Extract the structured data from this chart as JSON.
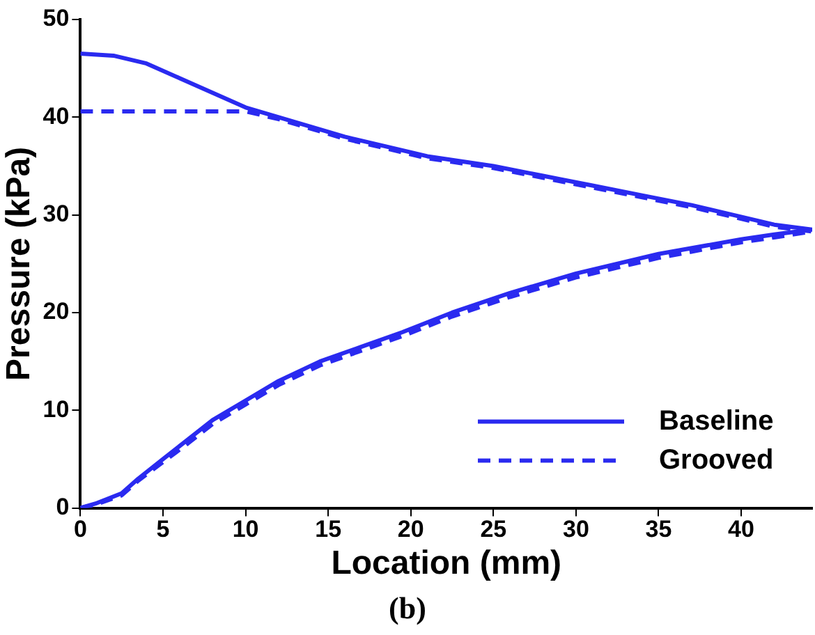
{
  "chart_data": {
    "type": "line",
    "xlabel": "Location (mm)",
    "ylabel": "Pressure (kPa)",
    "annotations": [
      "(b)"
    ],
    "xlim": [
      0,
      44.3
    ],
    "xticks": [
      0,
      5,
      10,
      15,
      20,
      25,
      30,
      35,
      40
    ],
    "ylim": [
      0,
      50
    ],
    "yticks": [
      0,
      10,
      20,
      30,
      40,
      50
    ],
    "grid": false,
    "legend": "bottom right",
    "marker": "none",
    "series": [
      {
        "name": "Baseline",
        "color": "#2a2af0",
        "line_style": "solid",
        "x": [
          0,
          2,
          4,
          6,
          8,
          10,
          12,
          14,
          16,
          18.5,
          21,
          25,
          28,
          31,
          34,
          37,
          39.5,
          42,
          44.3,
          42,
          40,
          35,
          30,
          26,
          22.5,
          19.5,
          17,
          14.5,
          12,
          10,
          8,
          6.5,
          5,
          3.5,
          2.5,
          1,
          0
        ],
        "values": [
          46.5,
          46.3,
          45.5,
          44,
          42.5,
          41,
          40,
          39,
          38,
          37,
          36,
          35,
          34,
          33,
          32,
          31,
          30,
          29,
          28.5,
          28,
          27.5,
          26,
          24,
          22,
          20,
          18,
          16.5,
          15,
          13,
          11,
          9,
          7,
          5,
          3,
          1.5,
          0.5,
          0
        ]
      },
      {
        "name": "Grooved",
        "color": "#2a2af0",
        "line_style": "dashed",
        "x": [
          0,
          10,
          12,
          14,
          16,
          18.5,
          21,
          25,
          28,
          31,
          34,
          37,
          39.5,
          42,
          44.3,
          42,
          40,
          35,
          30,
          26,
          22.5,
          19.5,
          17,
          14.5,
          12,
          10,
          8,
          6.5,
          5,
          3.5,
          2.5,
          1,
          0
        ],
        "values": [
          40.6,
          40.6,
          39.8,
          38.8,
          37.8,
          36.8,
          35.8,
          34.8,
          33.8,
          32.8,
          31.8,
          30.8,
          29.8,
          28.8,
          28.3,
          27.7,
          27.2,
          25.6,
          23.6,
          21.6,
          19.6,
          17.6,
          16.1,
          14.6,
          12.6,
          10.6,
          8.6,
          6.6,
          4.7,
          2.8,
          1.3,
          0.4,
          0
        ]
      }
    ]
  }
}
